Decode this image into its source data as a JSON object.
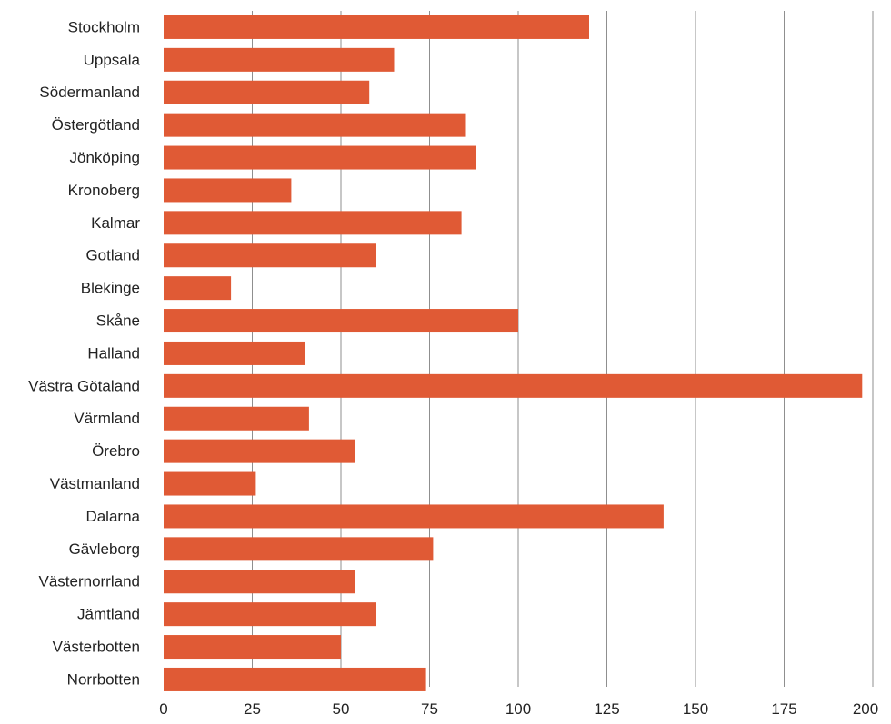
{
  "chart_data": {
    "type": "bar",
    "orientation": "horizontal",
    "categories": [
      "Stockholm",
      "Uppsala",
      "Södermanland",
      "Östergötland",
      "Jönköping",
      "Kronoberg",
      "Kalmar",
      "Gotland",
      "Blekinge",
      "Skåne",
      "Halland",
      "Västra Götaland",
      "Värmland",
      "Örebro",
      "Västmanland",
      "Dalarna",
      "Gävleborg",
      "Västernorrland",
      "Jämtland",
      "Västerbotten",
      "Norrbotten"
    ],
    "values": [
      120,
      65,
      58,
      85,
      88,
      36,
      84,
      60,
      19,
      100,
      40,
      197,
      41,
      54,
      26,
      141,
      76,
      54,
      60,
      50,
      74
    ],
    "title": "",
    "xlabel": "",
    "ylabel": "",
    "xlim": [
      0,
      200
    ],
    "xticks": [
      0,
      25,
      50,
      75,
      100,
      125,
      150,
      175,
      200
    ],
    "grid": "vertical",
    "legend": "none",
    "bar_color": "#e05a35",
    "grid_color": "#8f8f8f"
  }
}
